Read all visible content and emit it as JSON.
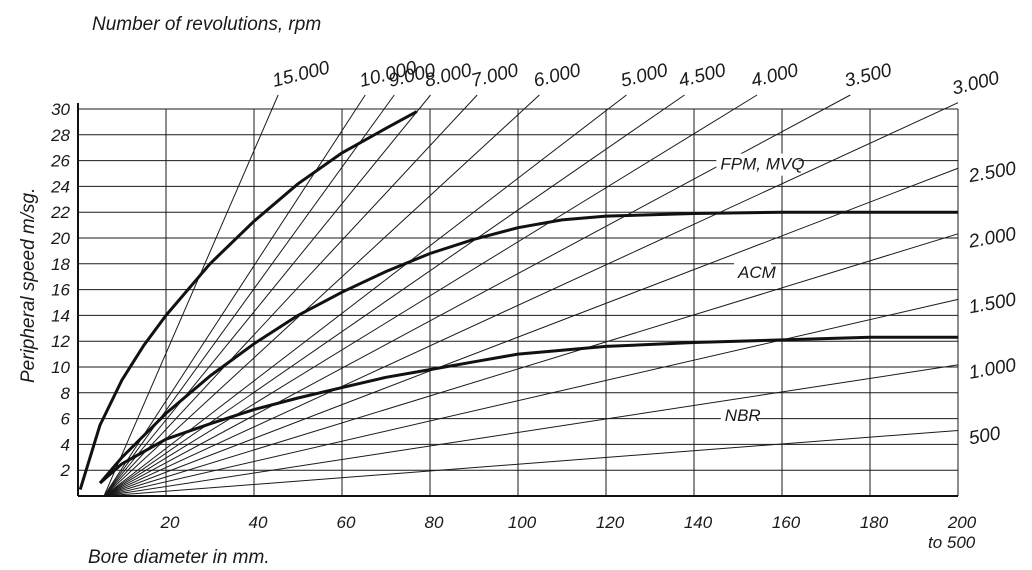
{
  "chart_data": {
    "type": "line",
    "title": "Number of revolutions, rpm",
    "xlabel": "Bore diameter in mm.",
    "xlabel_suffix": "to 500",
    "ylabel": "Peripheral speed m/sg.",
    "xlim": [
      0,
      200
    ],
    "ylim": [
      0,
      30
    ],
    "x_ticks": [
      20,
      40,
      60,
      80,
      100,
      120,
      140,
      160,
      180,
      200
    ],
    "y_ticks": [
      2,
      4,
      6,
      8,
      10,
      12,
      14,
      16,
      18,
      20,
      22,
      24,
      26,
      28,
      30
    ],
    "grid": true,
    "rpm_lines": [
      {
        "label": "15.000",
        "rpm": 15000,
        "placement": "top"
      },
      {
        "label": "10.000",
        "rpm": 10000,
        "placement": "top"
      },
      {
        "label": "9.000",
        "rpm": 9000,
        "placement": "top"
      },
      {
        "label": "8.000",
        "rpm": 8000,
        "placement": "top"
      },
      {
        "label": "7.000",
        "rpm": 7000,
        "placement": "top"
      },
      {
        "label": "6.000",
        "rpm": 6000,
        "placement": "top"
      },
      {
        "label": "5.000",
        "rpm": 5000,
        "placement": "top"
      },
      {
        "label": "4.500",
        "rpm": 4500,
        "placement": "top"
      },
      {
        "label": "4.000",
        "rpm": 4000,
        "placement": "top"
      },
      {
        "label": "3.500",
        "rpm": 3500,
        "placement": "top"
      },
      {
        "label": "3.000",
        "rpm": 3000,
        "placement": "top"
      },
      {
        "label": "2.500",
        "rpm": 2500,
        "placement": "right"
      },
      {
        "label": "2.000",
        "rpm": 2000,
        "placement": "right"
      },
      {
        "label": "1.500",
        "rpm": 1500,
        "placement": "right"
      },
      {
        "label": "1.000",
        "rpm": 1000,
        "placement": "right"
      },
      {
        "label": "500",
        "rpm": 500,
        "placement": "right"
      }
    ],
    "series": [
      {
        "name": "FPM, MVQ",
        "x": [
          0.5,
          5,
          10,
          15,
          20,
          30,
          40,
          50,
          60,
          70,
          77
        ],
        "y": [
          0.5,
          5.5,
          9.0,
          11.7,
          14.0,
          18.0,
          21.3,
          24.2,
          26.6,
          28.5,
          29.8
        ]
      },
      {
        "name": "ACM",
        "x": [
          5,
          10,
          20,
          30,
          40,
          50,
          60,
          70,
          80,
          90,
          100,
          110,
          120,
          140,
          160,
          180,
          200
        ],
        "y": [
          1.0,
          3.0,
          6.4,
          9.3,
          11.8,
          14.0,
          15.8,
          17.4,
          18.8,
          19.9,
          20.8,
          21.4,
          21.7,
          21.9,
          22.0,
          22.0,
          22.0
        ]
      },
      {
        "name": "NBR",
        "x": [
          5,
          10,
          20,
          30,
          40,
          50,
          60,
          70,
          80,
          90,
          100,
          120,
          140,
          160,
          180,
          200
        ],
        "y": [
          1.0,
          2.5,
          4.4,
          5.6,
          6.7,
          7.6,
          8.4,
          9.2,
          9.8,
          10.4,
          11.0,
          11.6,
          11.9,
          12.1,
          12.3,
          12.3
        ]
      }
    ],
    "annotations": [
      {
        "text": "FPM, MVQ",
        "x": 146,
        "y": 25.3
      },
      {
        "text": "ACM",
        "x": 150,
        "y": 16.9
      },
      {
        "text": "NBR",
        "x": 147,
        "y": 5.8
      }
    ]
  }
}
